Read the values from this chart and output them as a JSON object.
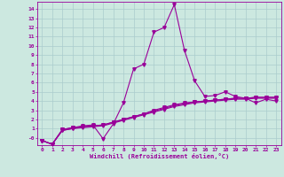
{
  "xlabel": "Windchill (Refroidissement éolien,°C)",
  "xlim": [
    -0.5,
    23.5
  ],
  "ylim": [
    -0.8,
    14.8
  ],
  "xticks": [
    0,
    1,
    2,
    3,
    4,
    5,
    6,
    7,
    8,
    9,
    10,
    11,
    12,
    13,
    14,
    15,
    16,
    17,
    18,
    19,
    20,
    21,
    22,
    23
  ],
  "yticks": [
    0,
    1,
    2,
    3,
    4,
    5,
    6,
    7,
    8,
    9,
    10,
    11,
    12,
    13,
    14
  ],
  "bg_color": "#cce8e0",
  "grid_color": "#aacccc",
  "line_color": "#990099",
  "line_width": 0.8,
  "marker": "v",
  "marker_size": 2.5,
  "lines": [
    [
      0,
      -0.3,
      1,
      -0.7,
      2,
      0.8,
      3,
      1.0,
      4,
      1.2,
      5,
      1.3,
      6,
      1.4,
      7,
      1.7,
      8,
      2.0,
      9,
      2.3,
      10,
      2.6,
      11,
      3.0,
      12,
      3.3,
      13,
      3.6,
      14,
      3.8,
      15,
      3.9,
      16,
      4.0,
      17,
      4.1,
      18,
      4.2,
      19,
      4.3,
      20,
      4.3,
      21,
      4.4,
      22,
      4.4,
      23,
      4.4
    ],
    [
      0,
      -0.3,
      1,
      -0.7,
      2,
      0.9,
      3,
      1.1,
      4,
      1.3,
      5,
      1.4,
      6,
      -0.1,
      7,
      1.5,
      8,
      3.8,
      9,
      7.5,
      10,
      8.0,
      11,
      11.5,
      12,
      12.0,
      13,
      14.5,
      14,
      9.5,
      15,
      6.2,
      16,
      4.5,
      17,
      4.6,
      18,
      5.0,
      19,
      4.5,
      20,
      4.3,
      21,
      3.8,
      22,
      4.2,
      23,
      4.0
    ],
    [
      0,
      -0.3,
      1,
      -0.7,
      2,
      0.8,
      3,
      1.0,
      4,
      1.1,
      5,
      1.2,
      6,
      1.3,
      7,
      1.6,
      8,
      1.9,
      9,
      2.2,
      10,
      2.5,
      11,
      2.8,
      12,
      3.1,
      13,
      3.4,
      14,
      3.6,
      15,
      3.8,
      16,
      3.9,
      17,
      4.0,
      18,
      4.1,
      19,
      4.2,
      20,
      4.2,
      21,
      4.3,
      22,
      4.3,
      23,
      4.3
    ],
    [
      0,
      -0.3,
      1,
      -0.7,
      2,
      0.9,
      3,
      1.1,
      4,
      1.2,
      5,
      1.3,
      6,
      1.4,
      7,
      1.7,
      8,
      2.0,
      9,
      2.3,
      10,
      2.6,
      11,
      2.9,
      12,
      3.2,
      13,
      3.5,
      14,
      3.7,
      15,
      3.9,
      16,
      4.0,
      17,
      4.1,
      18,
      4.2,
      19,
      4.3,
      20,
      4.3,
      21,
      4.4,
      22,
      4.4,
      23,
      4.4
    ]
  ]
}
